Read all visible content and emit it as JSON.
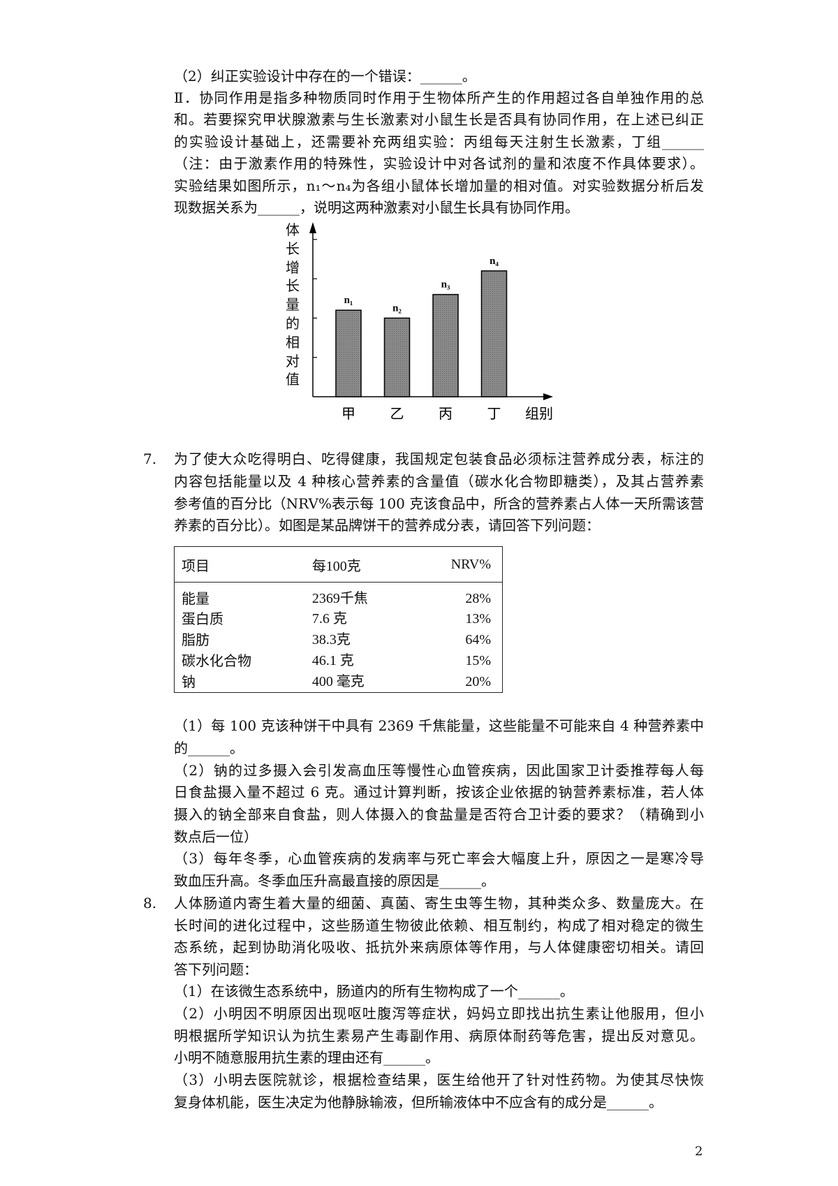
{
  "part_top": {
    "lines": [
      "（2）纠正实验设计中存在的一个错误：______。",
      "Ⅱ．协同作用是指多种物质同时作用于生物体所产生的作用超过各自单独作用的总",
      "和。若要探究甲状腺激素与生长激素对小鼠生长是否具有协同作用，在上述已纠正",
      "的实验设计基础上，还需要补充两组实验：丙组每天注射生长激素，丁组______",
      "（注：由于激素作用的特殊性，实验设计中对各试剂的量和浓度不作具体要求）。",
      "实验结果如图所示，n₁～n₄为各组小鼠体长增加量的相对值。对实验数据分析后发",
      "现数据关系为______，说明这两种激素对小鼠生长具有协同作用。"
    ]
  },
  "chart_data": {
    "type": "bar",
    "ylabel": "体长增长量的相对值",
    "xlabel": "组别",
    "categories": [
      "甲",
      "乙",
      "丙",
      "丁"
    ],
    "data_labels": [
      "n₁",
      "n₂",
      "n₃",
      "n₄"
    ],
    "values": [
      2.2,
      2.0,
      2.6,
      3.2
    ],
    "ylim": [
      0,
      4.4
    ],
    "yticks": [
      1,
      2,
      3,
      4
    ],
    "grid": false,
    "bar_color": "#8a8a8a"
  },
  "q7": {
    "number": "7.",
    "lines": [
      "为了使大众吃得明白、吃得健康，我国规定包装食品必须标注营养成分表，标注的",
      "内容包括能量以及 4 种核心营养素的含量值（碳水化合物即糖类），及其占营养素",
      "参考值的百分比（NRV%表示每 100 克该食品中，所含的营养素占人体一天所需该营",
      "养素的百分比）。如图是某品牌饼干的营养成分表，请回答下列问题："
    ],
    "table": {
      "headers": [
        "项目",
        "每100克",
        "NRV%"
      ],
      "rows": [
        [
          "能量",
          "2369千焦",
          "28%"
        ],
        [
          "蛋白质",
          "7.6 克",
          "13%"
        ],
        [
          "脂肪",
          "38.3克",
          "64%"
        ],
        [
          "碳水化合物",
          "46.1 克",
          "15%"
        ],
        [
          "钠",
          "400 毫克",
          "20%"
        ]
      ]
    },
    "sub_lines": [
      "（1）每 100 克该种饼干中具有 2369 千焦能量，这些能量不可能来自 4 种营养素中",
      "的______。",
      "（2）钠的过多摄入会引发高血压等慢性心血管疾病，因此国家卫计委推荐每人每",
      "日食盐摄入量不超过 6 克。通过计算判断，按该企业依据的钠营养素标准，若人体",
      "摄入的钠全部来自食盐，则人体摄入的食盐量是否符合卫计委的要求？（精确到小",
      "数点后一位）",
      "（3）每年冬季，心血管疾病的发病率与死亡率会大幅度上升，原因之一是寒冷导",
      "致血压升高。冬季血压升高最直接的原因是______。"
    ]
  },
  "q8": {
    "number": "8.",
    "lines": [
      "人体肠道内寄生着大量的细菌、真菌、寄生虫等生物，其种类众多、数量庞大。在",
      "长时间的进化过程中，这些肠道生物彼此依赖、相互制约，构成了相对稳定的微生",
      "态系统，起到协助消化吸收、抵抗外来病原体等作用，与人体健康密切相关。请回",
      "答下列问题：",
      "（1）在该微生态系统中，肠道内的所有生物构成了一个______。",
      "（2）小明因不明原因出现呕吐腹泻等症状，妈妈立即找出抗生素让他服用，但小",
      "明根据所学知识认为抗生素易产生毒副作用、病原体耐药等危害，提出反对意见。",
      "小明不随意服用抗生素的理由还有______。",
      "（3）小明去医院就诊，根据检查结果，医生给他开了针对性药物。为使其尽快恢",
      "复身体机能，医生决定为他静脉输液，但所输液体中不应含有的成分是______。"
    ]
  },
  "page_number": "2"
}
